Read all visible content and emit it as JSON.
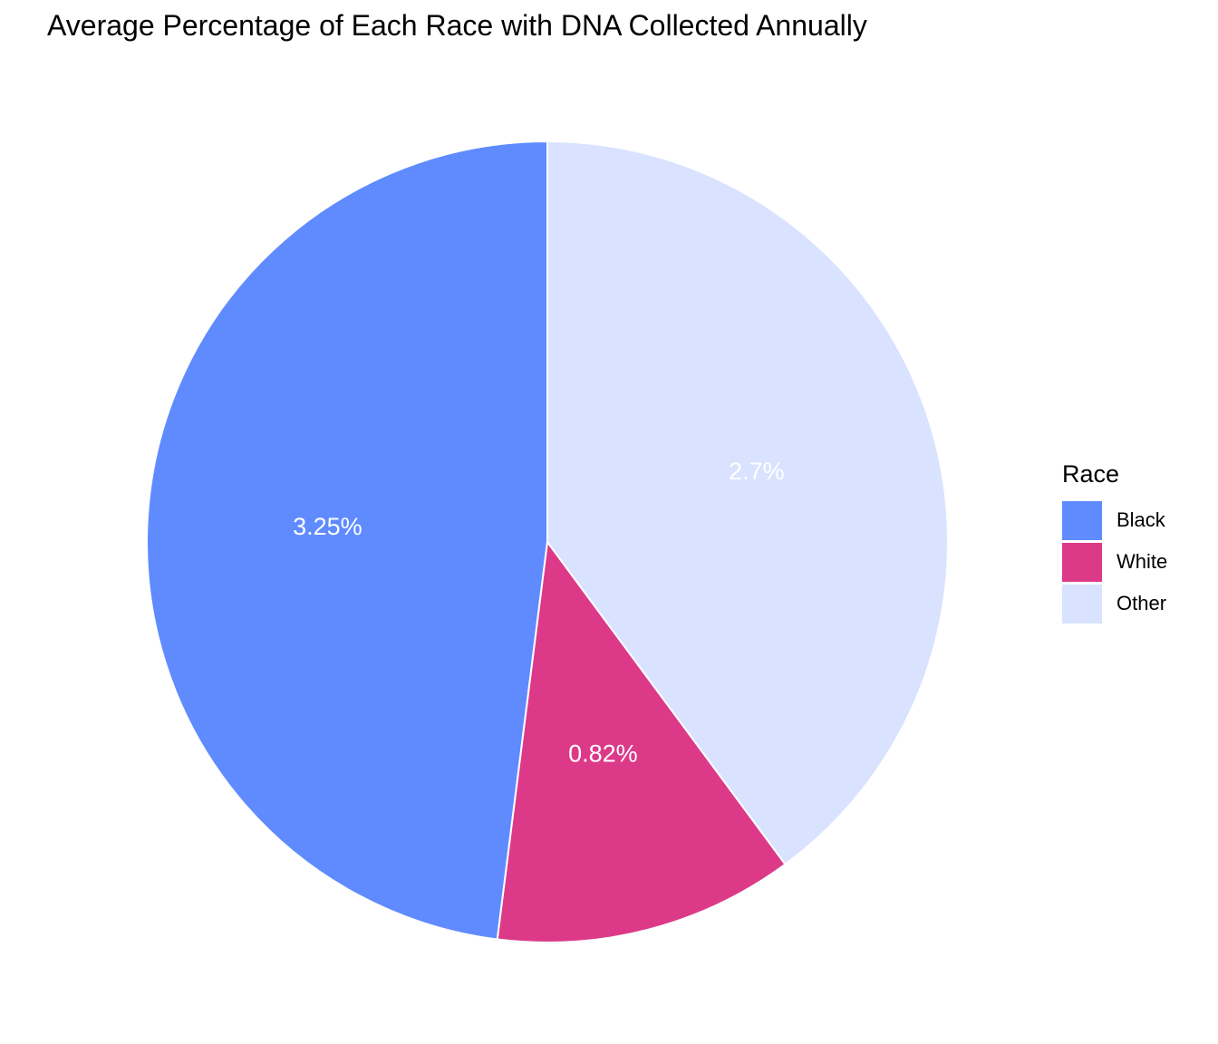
{
  "chart_data": {
    "type": "pie",
    "title": "Average Percentage of Each Race with DNA Collected Annually",
    "legend_title": "Race",
    "legend_position": "right",
    "slices": [
      {
        "name": "Black",
        "value": 3.25,
        "label": "3.25%",
        "color": "#5F8BFF"
      },
      {
        "name": "White",
        "value": 0.82,
        "label": "0.82%",
        "color": "#DC3A89"
      },
      {
        "name": "Other",
        "value": 2.7,
        "label": "2.7%",
        "color": "#D9E2FF"
      }
    ]
  }
}
